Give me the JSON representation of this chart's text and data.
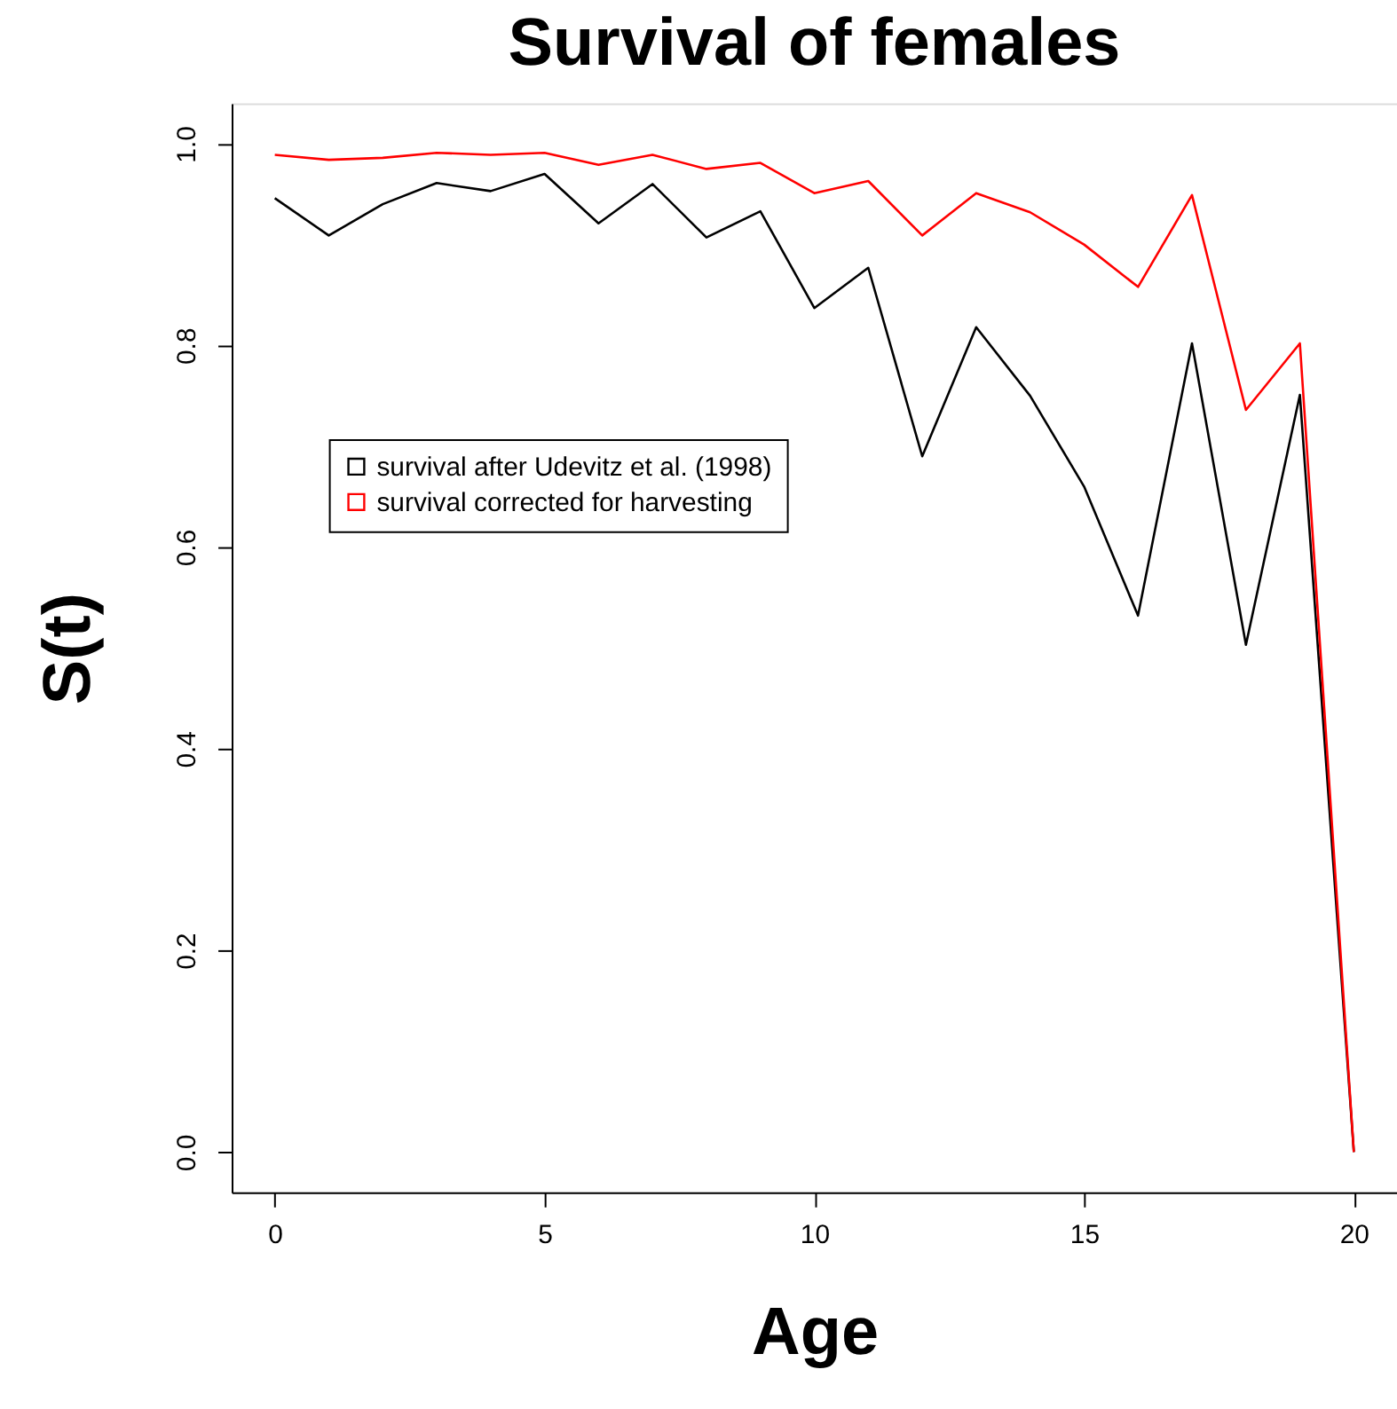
{
  "chart_data": {
    "type": "line",
    "title": "Survival of females",
    "xlabel": "Age",
    "ylabel": "S(t)",
    "x": [
      0,
      1,
      2,
      3,
      4,
      5,
      6,
      7,
      8,
      9,
      10,
      11,
      12,
      13,
      14,
      15,
      16,
      17,
      18,
      19,
      20
    ],
    "series": [
      {
        "name": "survival after Udevitz et al. (1998)",
        "color": "#000000",
        "values": [
          0.946,
          0.909,
          0.94,
          0.961,
          0.953,
          0.97,
          0.921,
          0.96,
          0.907,
          0.933,
          0.837,
          0.877,
          0.69,
          0.818,
          0.75,
          0.66,
          0.532,
          0.802,
          0.503,
          0.751,
          0
        ]
      },
      {
        "name": "survival corrected for harvesting",
        "color": "#ff0000",
        "values": [
          0.989,
          0.984,
          0.986,
          0.991,
          0.989,
          0.991,
          0.979,
          0.989,
          0.975,
          0.981,
          0.951,
          0.963,
          0.909,
          0.951,
          0.932,
          0.9,
          0.858,
          0.949,
          0.736,
          0.802,
          0
        ]
      }
    ],
    "xlim": [
      -0.8,
      20.8
    ],
    "ylim": [
      -0.04,
      1.04
    ],
    "xticks": [
      0,
      5,
      10,
      15,
      20
    ],
    "yticks": [
      {
        "value": 0,
        "label": "0.0"
      },
      0.2,
      0.4,
      0.6,
      0.8,
      {
        "value": 1,
        "label": "1.0"
      }
    ],
    "legend": "left",
    "grid": false,
    "marker": "none",
    "line_style": "solid"
  }
}
